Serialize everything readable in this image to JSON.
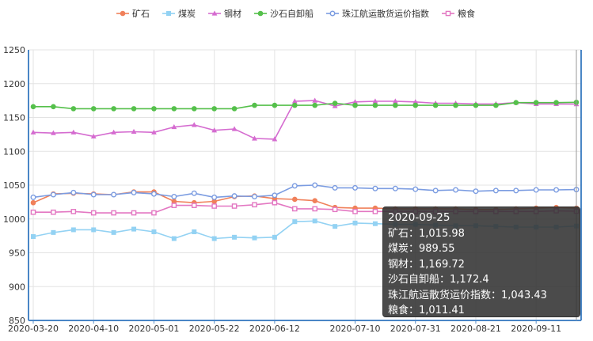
{
  "chart_data": {
    "type": "line",
    "title": "",
    "xlabel": "",
    "ylabel": "",
    "ylim": [
      850,
      1250
    ],
    "yticks": [
      850,
      900,
      950,
      1000,
      1050,
      1100,
      1150,
      1200,
      1250
    ],
    "grid": true,
    "legend_position": "top-center",
    "x": [
      "2020-03-20",
      "2020-03-27",
      "2020-04-03",
      "2020-04-10",
      "2020-04-17",
      "2020-04-24",
      "2020-05-01",
      "2020-05-08",
      "2020-05-15",
      "2020-05-22",
      "2020-05-29",
      "2020-06-05",
      "2020-06-12",
      "2020-06-19",
      "2020-06-26",
      "2020-07-03",
      "2020-07-10",
      "2020-07-17",
      "2020-07-24",
      "2020-07-31",
      "2020-08-07",
      "2020-08-14",
      "2020-08-21",
      "2020-08-28",
      "2020-09-04",
      "2020-09-11",
      "2020-09-18",
      "2020-09-25"
    ],
    "x_tick_labels": [
      "2020-03-20",
      "2020-04-10",
      "2020-05-01",
      "2020-05-22",
      "2020-06-12",
      "2020-07-10",
      "2020-07-31",
      "2020-08-21",
      "2020-09-11"
    ],
    "series": [
      {
        "name": "矿石",
        "color": "#f0805a",
        "marker": "circle-filled",
        "values": [
          1024,
          1037,
          1038,
          1037,
          1036,
          1040,
          1040,
          1026,
          1024,
          1026,
          1033,
          1034,
          1030,
          1029,
          1027,
          1017,
          1016,
          1016,
          1015,
          1015,
          1015,
          1015,
          1014,
          1014,
          1015,
          1016,
          1017,
          1015.98
        ]
      },
      {
        "name": "煤炭",
        "color": "#93d2f3",
        "marker": "square-filled",
        "values": [
          974,
          980,
          984,
          984,
          980,
          985,
          981,
          971,
          981,
          971,
          973,
          972,
          973,
          996,
          997,
          989,
          994,
          993,
          992,
          992,
          991,
          990,
          990,
          989,
          988,
          988,
          988,
          989.55
        ]
      },
      {
        "name": "钢材",
        "color": "#d56cd0",
        "marker": "triangle-filled",
        "values": [
          1128,
          1127,
          1128,
          1122,
          1128,
          1129,
          1128,
          1136,
          1139,
          1131,
          1133,
          1119,
          1118,
          1174,
          1175,
          1167,
          1173,
          1174,
          1174,
          1173,
          1171,
          1171,
          1170,
          1170,
          1172,
          1170,
          1170,
          1169.72
        ]
      },
      {
        "name": "沙石自卸船",
        "color": "#55c04b",
        "marker": "circle-filled",
        "values": [
          1166,
          1166,
          1163,
          1163,
          1163,
          1163,
          1163,
          1163,
          1163,
          1163,
          1163,
          1168,
          1168,
          1168,
          1168,
          1171,
          1168,
          1168,
          1168,
          1168,
          1168,
          1168,
          1168,
          1168,
          1172,
          1172,
          1172,
          1172.4
        ]
      },
      {
        "name": "珠江航运散货运价指数",
        "color": "#7b9ce1",
        "marker": "circle-hollow",
        "values": [
          1032,
          1036,
          1039,
          1036,
          1036,
          1039,
          1037,
          1033,
          1038,
          1032,
          1034,
          1033,
          1035,
          1049,
          1050,
          1046,
          1046,
          1045,
          1045,
          1044,
          1042,
          1043,
          1041,
          1042,
          1042,
          1043,
          1043,
          1043.43
        ]
      },
      {
        "name": "粮食",
        "color": "#e377c2",
        "marker": "square-hollow",
        "values": [
          1010,
          1010,
          1011,
          1009,
          1009,
          1009,
          1009,
          1020,
          1020,
          1019,
          1019,
          1021,
          1024,
          1015,
          1015,
          1014,
          1011,
          1011,
          1011,
          1011,
          1011,
          1011,
          1011,
          1011,
          1011,
          1011,
          1012,
          1011.41
        ]
      }
    ]
  },
  "tooltip": {
    "date": "2020-09-25",
    "lines": [
      "矿石：1,015.98",
      "煤炭：989.55",
      "钢材：1,169.72",
      "沙石自卸船：1,172.4",
      "珠江航运散货运价指数：1,043.43",
      "粮食：1,011.41"
    ]
  }
}
